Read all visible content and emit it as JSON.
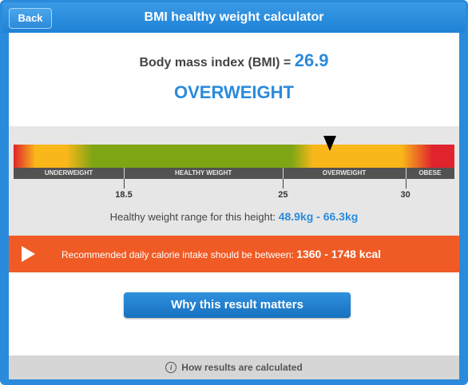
{
  "header": {
    "back_label": "Back",
    "title": "BMI healthy weight calculator"
  },
  "result": {
    "bmi_label": "Body mass index (BMI) = ",
    "bmi_value": "26.9",
    "category": "OVERWEIGHT"
  },
  "gauge": {
    "scale_min": 14,
    "scale_max": 32,
    "marker_value": 26.9,
    "zones": [
      {
        "label": "UNDERWEIGHT",
        "from": 14,
        "to": 18.5
      },
      {
        "label": "HEALTHY WEIGHT",
        "from": 18.5,
        "to": 25
      },
      {
        "label": "OVERWEIGHT",
        "from": 25,
        "to": 30
      },
      {
        "label": "OBESE",
        "from": 30,
        "to": 32
      }
    ],
    "ticks": [
      {
        "label": "18.5",
        "value": 18.5
      },
      {
        "label": "25",
        "value": 25
      },
      {
        "label": "30",
        "value": 30
      }
    ],
    "colors": {
      "underweight": "#f9b71a",
      "healthy": "#7ea514",
      "overweight": "#f9b71a",
      "obese": "#e0242d"
    }
  },
  "healthy_range": {
    "label": "Healthy weight range for this height: ",
    "value": "48.9kg - 66.3kg"
  },
  "calorie": {
    "label": "Recommended daily calorie intake should be between: ",
    "value": "1360 - 1748 kcal"
  },
  "why_button_label": "Why this result matters",
  "footer": {
    "icon": "info-icon",
    "label": "How results are calculated"
  },
  "colors": {
    "accent": "#2a8bdc",
    "banner": "#f05b25"
  }
}
